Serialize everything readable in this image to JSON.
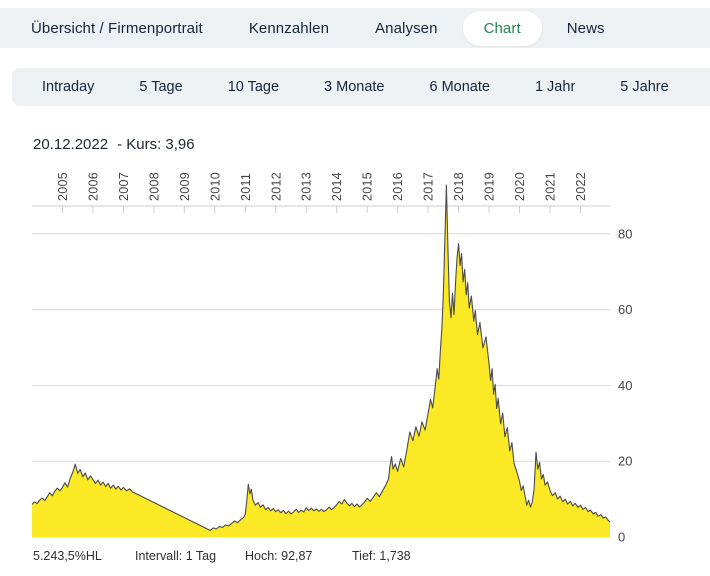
{
  "nav": {
    "items": [
      {
        "label": "Übersicht / Firmenportrait",
        "active": false
      },
      {
        "label": "Kennzahlen",
        "active": false
      },
      {
        "label": "Analysen",
        "active": false
      },
      {
        "label": "Chart",
        "active": true
      },
      {
        "label": "News",
        "active": false
      }
    ]
  },
  "range_toolbar": {
    "items": [
      "Intraday",
      "5 Tage",
      "10 Tage",
      "3 Monate",
      "6 Monate",
      "1 Jahr",
      "5 Jahre"
    ]
  },
  "chart_header": {
    "date": "20.12.2022",
    "price_label": "- Kurs: 3,96"
  },
  "chart_footer": {
    "change_label": "5.243,5%HL",
    "interval_label": "Intervall: 1 Tag",
    "high_label": "Hoch:  92,87",
    "low_label": "Tief:  1,738"
  },
  "colors": {
    "accent_green": "#1e8a52",
    "nav_bg": "#eef1f4",
    "nav_text": "#16243a",
    "chart_fill": "#fbe926",
    "chart_line": "#4b4b4b",
    "grid": "#dadada",
    "tick": "#c8cdd3",
    "axis_text": "#454545"
  },
  "chart_data": {
    "type": "area",
    "title": "20.12.2022 - Kurs: 3,96",
    "series_name": "Kurs",
    "interval": "1 Tag",
    "high": 92.87,
    "low": 1.738,
    "last": 3.96,
    "change_percent_hl": "5.243,5%",
    "x_ticks": [
      2005,
      2006,
      2007,
      2008,
      2009,
      2010,
      2011,
      2012,
      2013,
      2014,
      2015,
      2016,
      2017,
      2018,
      2019,
      2020,
      2021,
      2022
    ],
    "y_ticks": [
      0,
      20,
      40,
      60,
      80
    ],
    "xlim": [
      2004.0,
      2022.97
    ],
    "ylim": [
      0,
      96
    ],
    "grid": true,
    "y_axis_side": "right",
    "points": [
      [
        2004.0,
        8.6
      ],
      [
        2004.08,
        9.3
      ],
      [
        2004.17,
        8.8
      ],
      [
        2004.25,
        9.7
      ],
      [
        2004.33,
        10.3
      ],
      [
        2004.42,
        9.6
      ],
      [
        2004.5,
        10.6
      ],
      [
        2004.58,
        11.7
      ],
      [
        2004.67,
        10.9
      ],
      [
        2004.75,
        12.1
      ],
      [
        2004.83,
        12.9
      ],
      [
        2004.92,
        12.2
      ],
      [
        2005.0,
        13.1
      ],
      [
        2005.08,
        14.3
      ],
      [
        2005.17,
        13.2
      ],
      [
        2005.25,
        15.4
      ],
      [
        2005.33,
        16.9
      ],
      [
        2005.42,
        19.2
      ],
      [
        2005.5,
        16.8
      ],
      [
        2005.58,
        17.8
      ],
      [
        2005.67,
        15.9
      ],
      [
        2005.75,
        16.9
      ],
      [
        2005.83,
        15.1
      ],
      [
        2005.92,
        16.1
      ],
      [
        2006.0,
        15.2
      ],
      [
        2006.08,
        14.1
      ],
      [
        2006.17,
        15.0
      ],
      [
        2006.25,
        13.7
      ],
      [
        2006.33,
        14.5
      ],
      [
        2006.42,
        13.3
      ],
      [
        2006.5,
        14.2
      ],
      [
        2006.58,
        12.9
      ],
      [
        2006.67,
        13.7
      ],
      [
        2006.75,
        12.6
      ],
      [
        2006.83,
        13.4
      ],
      [
        2006.92,
        12.4
      ],
      [
        2007.0,
        13.1
      ],
      [
        2007.1,
        12.2
      ],
      [
        2007.2,
        12.7
      ],
      [
        2007.3,
        11.9
      ],
      [
        2009.85,
        1.74
      ],
      [
        2009.95,
        2.4
      ],
      [
        2010.05,
        2.1
      ],
      [
        2010.15,
        2.8
      ],
      [
        2010.25,
        2.5
      ],
      [
        2010.35,
        3.2
      ],
      [
        2010.45,
        2.9
      ],
      [
        2010.55,
        3.6
      ],
      [
        2010.65,
        4.2
      ],
      [
        2010.75,
        3.8
      ],
      [
        2010.85,
        4.6
      ],
      [
        2010.95,
        5.2
      ],
      [
        2011.0,
        6.1
      ],
      [
        2011.05,
        9.6
      ],
      [
        2011.1,
        13.9
      ],
      [
        2011.15,
        11.4
      ],
      [
        2011.2,
        12.6
      ],
      [
        2011.25,
        9.8
      ],
      [
        2011.33,
        8.4
      ],
      [
        2011.42,
        9.1
      ],
      [
        2011.5,
        7.8
      ],
      [
        2011.58,
        8.5
      ],
      [
        2011.67,
        7.2
      ],
      [
        2011.75,
        7.8
      ],
      [
        2011.83,
        6.9
      ],
      [
        2011.92,
        7.5
      ],
      [
        2012.0,
        6.7
      ],
      [
        2012.08,
        7.2
      ],
      [
        2012.17,
        6.4
      ],
      [
        2012.25,
        7.0
      ],
      [
        2012.33,
        6.2
      ],
      [
        2012.42,
        6.8
      ],
      [
        2012.5,
        6.1
      ],
      [
        2012.58,
        6.6
      ],
      [
        2012.67,
        7.3
      ],
      [
        2012.75,
        6.5
      ],
      [
        2012.83,
        7.1
      ],
      [
        2012.92,
        6.6
      ],
      [
        2013.0,
        7.7
      ],
      [
        2013.08,
        7.0
      ],
      [
        2013.17,
        7.6
      ],
      [
        2013.25,
        6.9
      ],
      [
        2013.33,
        7.4
      ],
      [
        2013.42,
        6.8
      ],
      [
        2013.5,
        7.3
      ],
      [
        2013.58,
        6.7
      ],
      [
        2013.67,
        7.2
      ],
      [
        2013.75,
        7.9
      ],
      [
        2013.83,
        7.2
      ],
      [
        2013.92,
        7.8
      ],
      [
        2014.0,
        8.5
      ],
      [
        2014.08,
        9.4
      ],
      [
        2014.17,
        8.7
      ],
      [
        2014.25,
        9.9
      ],
      [
        2014.33,
        9.0
      ],
      [
        2014.42,
        8.2
      ],
      [
        2014.5,
        8.9
      ],
      [
        2014.58,
        8.0
      ],
      [
        2014.67,
        8.7
      ],
      [
        2014.75,
        7.9
      ],
      [
        2014.83,
        8.5
      ],
      [
        2014.92,
        9.3
      ],
      [
        2015.0,
        10.2
      ],
      [
        2015.1,
        9.4
      ],
      [
        2015.2,
        10.5
      ],
      [
        2015.3,
        11.7
      ],
      [
        2015.4,
        10.6
      ],
      [
        2015.5,
        12.1
      ],
      [
        2015.6,
        13.5
      ],
      [
        2015.7,
        15.3
      ],
      [
        2015.75,
        18.7
      ],
      [
        2015.8,
        21.2
      ],
      [
        2015.85,
        17.9
      ],
      [
        2015.92,
        19.3
      ],
      [
        2016.0,
        17.3
      ],
      [
        2016.1,
        20.7
      ],
      [
        2016.2,
        18.5
      ],
      [
        2016.3,
        22.9
      ],
      [
        2016.4,
        27.7
      ],
      [
        2016.5,
        25.4
      ],
      [
        2016.6,
        29.1
      ],
      [
        2016.7,
        26.6
      ],
      [
        2016.8,
        30.4
      ],
      [
        2016.9,
        28.2
      ],
      [
        2017.0,
        32.6
      ],
      [
        2017.08,
        36.3
      ],
      [
        2017.15,
        34.1
      ],
      [
        2017.22,
        38.8
      ],
      [
        2017.3,
        44.4
      ],
      [
        2017.35,
        41.7
      ],
      [
        2017.4,
        48.9
      ],
      [
        2017.45,
        54.7
      ],
      [
        2017.5,
        63.9
      ],
      [
        2017.55,
        78.6
      ],
      [
        2017.6,
        92.87
      ],
      [
        2017.65,
        76.4
      ],
      [
        2017.7,
        62.3
      ],
      [
        2017.75,
        57.9
      ],
      [
        2017.8,
        64.3
      ],
      [
        2017.85,
        58.7
      ],
      [
        2017.9,
        66.9
      ],
      [
        2017.95,
        73.6
      ],
      [
        2018.0,
        77.4
      ],
      [
        2018.05,
        71.6
      ],
      [
        2018.1,
        74.8
      ],
      [
        2018.15,
        67.3
      ],
      [
        2018.2,
        70.6
      ],
      [
        2018.25,
        63.9
      ],
      [
        2018.3,
        67.1
      ],
      [
        2018.35,
        60.4
      ],
      [
        2018.42,
        63.6
      ],
      [
        2018.5,
        56.9
      ],
      [
        2018.55,
        59.8
      ],
      [
        2018.62,
        53.4
      ],
      [
        2018.7,
        56.6
      ],
      [
        2018.8,
        49.9
      ],
      [
        2018.9,
        52.8
      ],
      [
        2019.0,
        45.8
      ],
      [
        2019.05,
        41.3
      ],
      [
        2019.1,
        44.4
      ],
      [
        2019.15,
        37.7
      ],
      [
        2019.2,
        40.3
      ],
      [
        2019.25,
        33.9
      ],
      [
        2019.3,
        36.6
      ],
      [
        2019.38,
        29.9
      ],
      [
        2019.45,
        32.7
      ],
      [
        2019.52,
        26.5
      ],
      [
        2019.6,
        28.9
      ],
      [
        2019.68,
        22.7
      ],
      [
        2019.75,
        24.9
      ],
      [
        2019.82,
        19.5
      ],
      [
        2019.92,
        16.9
      ],
      [
        2020.0,
        14.7
      ],
      [
        2020.06,
        12.3
      ],
      [
        2020.12,
        13.5
      ],
      [
        2020.18,
        10.9
      ],
      [
        2020.24,
        8.4
      ],
      [
        2020.3,
        9.7
      ],
      [
        2020.36,
        7.9
      ],
      [
        2020.42,
        9.3
      ],
      [
        2020.48,
        12.6
      ],
      [
        2020.54,
        22.4
      ],
      [
        2020.6,
        17.9
      ],
      [
        2020.66,
        19.7
      ],
      [
        2020.72,
        15.3
      ],
      [
        2020.78,
        16.5
      ],
      [
        2020.84,
        13.7
      ],
      [
        2020.92,
        14.5
      ],
      [
        2021.0,
        12.3
      ],
      [
        2021.08,
        10.9
      ],
      [
        2021.17,
        11.7
      ],
      [
        2021.25,
        10.0
      ],
      [
        2021.33,
        10.8
      ],
      [
        2021.42,
        9.3
      ],
      [
        2021.5,
        10.0
      ],
      [
        2021.58,
        8.7
      ],
      [
        2021.67,
        9.4
      ],
      [
        2021.75,
        8.2
      ],
      [
        2021.83,
        8.9
      ],
      [
        2021.92,
        7.8
      ],
      [
        2022.0,
        8.4
      ],
      [
        2022.08,
        7.3
      ],
      [
        2022.17,
        7.8
      ],
      [
        2022.25,
        6.7
      ],
      [
        2022.33,
        7.1
      ],
      [
        2022.42,
        6.1
      ],
      [
        2022.5,
        6.5
      ],
      [
        2022.58,
        5.5
      ],
      [
        2022.67,
        5.9
      ],
      [
        2022.75,
        5.0
      ],
      [
        2022.83,
        5.3
      ],
      [
        2022.9,
        4.5
      ],
      [
        2022.97,
        3.96
      ]
    ]
  }
}
